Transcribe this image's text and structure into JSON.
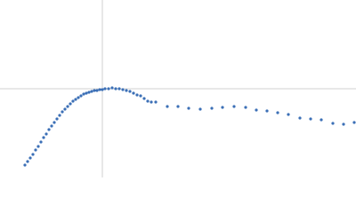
{
  "chart_data": {
    "type": "scatter",
    "color": "#3b6fb6",
    "xlim": [
      -115,
      285
    ],
    "ylim": [
      -100,
      100
    ],
    "x": [
      -87,
      -84,
      -81,
      -78,
      -75,
      -72,
      -69,
      -66,
      -63,
      -60,
      -57,
      -54,
      -51,
      -48,
      -45,
      -42,
      -39,
      -36,
      -33,
      -30,
      -27,
      -24,
      -21,
      -18,
      -15,
      -12,
      -9,
      -6,
      -3,
      0,
      3,
      7,
      11,
      15,
      19,
      23,
      27,
      31,
      35,
      39,
      43,
      47,
      51,
      55,
      60,
      73,
      85,
      97,
      110,
      123,
      135,
      148,
      161,
      173,
      185,
      197,
      209,
      222,
      234,
      246,
      259,
      271,
      283
    ],
    "values": [
      -86,
      -82,
      -78,
      -74,
      -69,
      -65,
      -60,
      -55,
      -51,
      -46,
      -42,
      -38,
      -34,
      -30,
      -26,
      -23,
      -20,
      -17,
      -14,
      -12,
      -10,
      -8,
      -6,
      -5,
      -4,
      -3,
      -2,
      -2,
      -1,
      -1,
      0,
      0,
      1,
      0,
      0,
      -1,
      -2,
      -3,
      -5,
      -7,
      -8,
      -11,
      -14,
      -15,
      -15,
      -20,
      -20,
      -22,
      -23,
      -22,
      -21,
      -20,
      -21,
      -24,
      -25,
      -27,
      -29,
      -33,
      -34,
      -35,
      -39,
      -40,
      -38
    ]
  }
}
